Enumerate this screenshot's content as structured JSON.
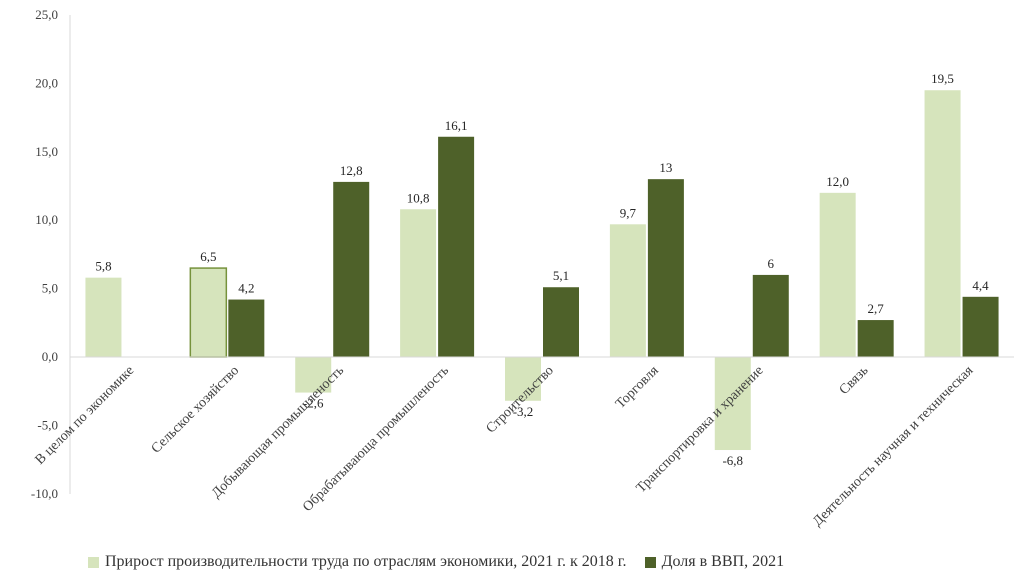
{
  "chart_data": {
    "type": "bar",
    "categories": [
      "В целом по экономике",
      "Сельское хозяйство",
      "Добывающая промышленость",
      "Обрабатывающа промышленость",
      "Строительство",
      "Торговля",
      "Транспортировка и хранение",
      "Связь",
      "Деятельность научная и техническая"
    ],
    "series": [
      {
        "name": "Прирост производительности труда по отраслям экономики, 2021 г. к 2018 г.",
        "values": [
          5.8,
          6.5,
          -2.6,
          10.8,
          -3.2,
          9.7,
          -6.8,
          12.0,
          19.5
        ],
        "labels": [
          "5,8",
          "6,5",
          "-2,6",
          "10,8",
          "-3,2",
          "9,7",
          "-6,8",
          "12,0",
          "19,5"
        ],
        "color": "#d6e4bc"
      },
      {
        "name": "Доля в ВВП, 2021",
        "values": [
          null,
          4.2,
          12.8,
          16.1,
          5.1,
          13,
          6,
          2.7,
          4.4
        ],
        "labels": [
          "",
          "4,2",
          "12,8",
          "16,1",
          "5,1",
          "13",
          "6",
          "2,7",
          "4,4"
        ],
        "color": "#4e6129"
      }
    ],
    "yticks": [
      "25,0",
      "20,0",
      "15,0",
      "10,0",
      "5,0",
      "0,0",
      "-5,0",
      "-10,0"
    ],
    "ylim": [
      -10,
      25
    ],
    "grid": false,
    "legend": "bottom",
    "title": "",
    "xlabel": "",
    "ylabel": ""
  }
}
